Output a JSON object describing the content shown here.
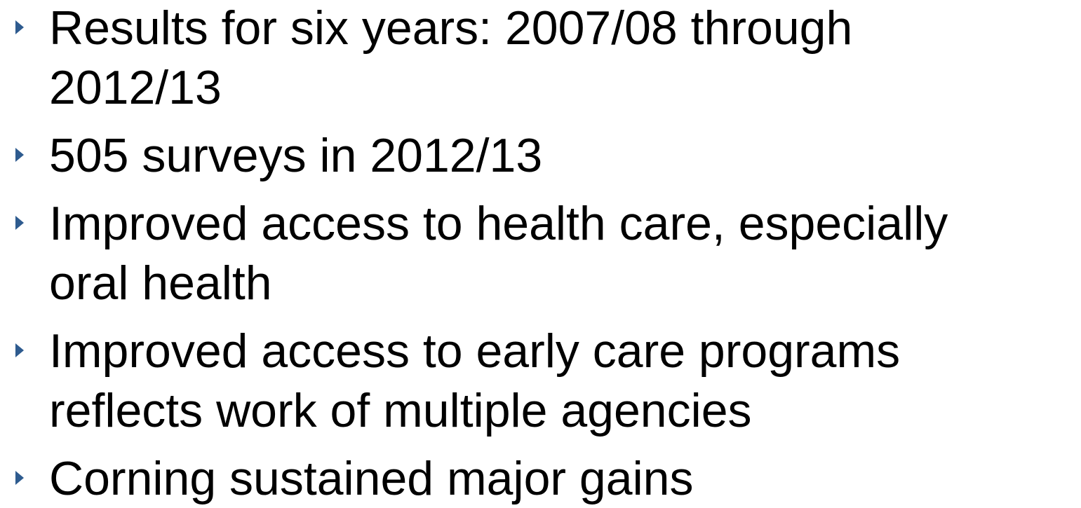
{
  "bullets": [
    {
      "lines": [
        "Results for six years: 2007/08 through",
        "2012/13"
      ]
    },
    {
      "lines": [
        "505 surveys in 2012/13"
      ]
    },
    {
      "lines": [
        "Improved access to health care, especially",
        "oral health"
      ]
    },
    {
      "lines": [
        "Improved access to early care programs",
        "reflects work of multiple agencies"
      ]
    },
    {
      "lines": [
        "Corning sustained major gains"
      ]
    }
  ]
}
